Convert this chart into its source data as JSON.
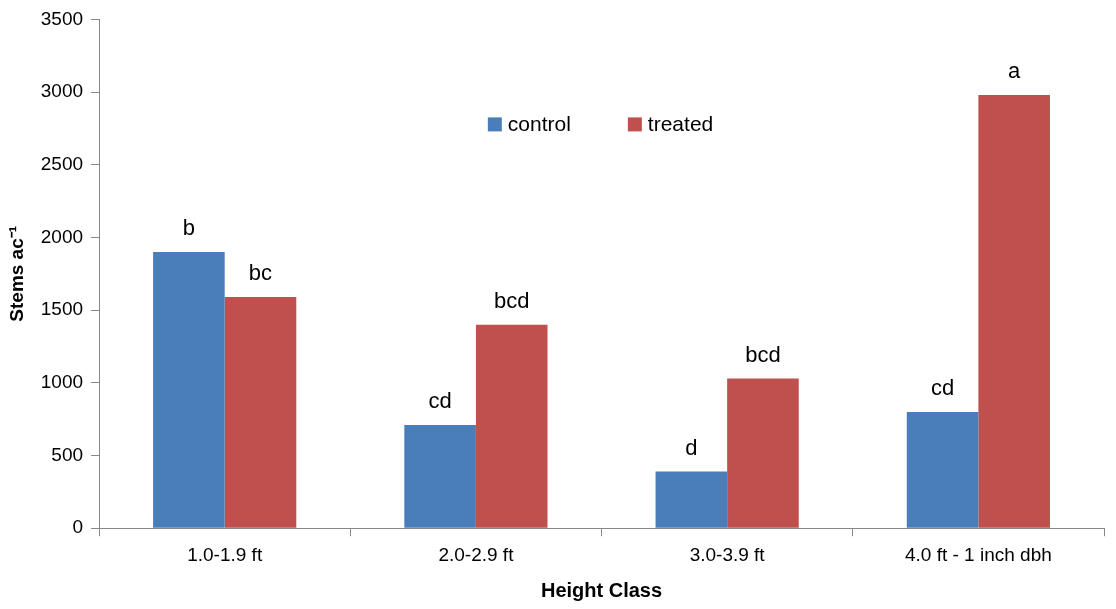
{
  "chart_data": {
    "type": "bar",
    "xlabel": "Height Class",
    "ylabel": "Stems ac⁻¹",
    "categories": [
      "1.0-1.9 ft",
      "2.0-2.9 ft",
      "3.0-3.9 ft",
      "4.0 ft - 1 inch dbh"
    ],
    "series": [
      {
        "name": "control",
        "color": "#4a7ebb",
        "values": [
          1900,
          710,
          390,
          800
        ],
        "value_labels": [
          "b",
          "cd",
          "d",
          "cd"
        ]
      },
      {
        "name": "treated",
        "color": "#c0504d",
        "values": [
          1590,
          1400,
          1030,
          2980
        ],
        "value_labels": [
          "bc",
          "bcd",
          "bcd",
          "a"
        ]
      }
    ],
    "ylim": [
      0,
      3500
    ],
    "yticks": [
      0,
      500,
      1000,
      1500,
      2000,
      2500,
      3000,
      3500
    ],
    "grid": false,
    "legend": "top"
  }
}
